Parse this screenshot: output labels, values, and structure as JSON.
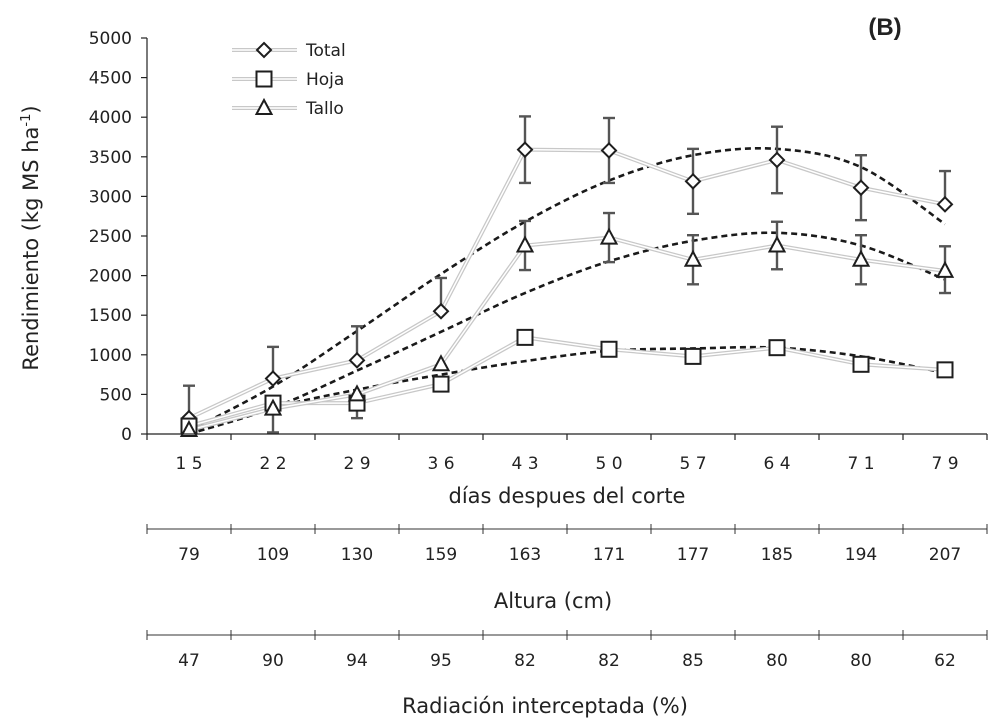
{
  "chart_data": {
    "type": "line",
    "panel_label": "(B)",
    "ylabel": "Rendimiento (kg MS ha",
    "ylabel_sup": "-1",
    "ylabel_close": ")",
    "xlabel": "días despues del corte",
    "ylim": [
      0,
      5000
    ],
    "yticks": [
      0,
      500,
      1000,
      1500,
      2000,
      2500,
      3000,
      3500,
      4000,
      4500,
      5000
    ],
    "categories": [
      "1 5",
      "2 2",
      "2 9",
      "3 6",
      "4 3",
      "5 0",
      "5 7",
      "6 4",
      "7 1",
      "7 9"
    ],
    "x": [
      15,
      22,
      29,
      36,
      43,
      50,
      57,
      64,
      71,
      79
    ],
    "series": [
      {
        "name": "Total",
        "marker": "diamond",
        "values": [
          200,
          700,
          930,
          1550,
          3590,
          3580,
          3190,
          3460,
          3110,
          2900
        ],
        "err_plus": [
          410,
          400,
          430,
          420,
          420,
          410,
          410,
          420,
          410,
          420
        ],
        "err_minus": [
          0,
          0,
          0,
          0,
          420,
          410,
          410,
          420,
          410,
          0
        ],
        "trend": [
          40,
          600,
          1300,
          2020,
          2680,
          3200,
          3520,
          3600,
          3370,
          2650
        ]
      },
      {
        "name": "Hoja",
        "marker": "square",
        "values": [
          100,
          390,
          390,
          630,
          1220,
          1070,
          980,
          1090,
          880,
          810
        ],
        "err_plus": [
          0,
          0,
          0,
          0,
          0,
          0,
          0,
          0,
          0,
          0
        ],
        "err_minus": [
          0,
          0,
          0,
          0,
          0,
          0,
          0,
          0,
          0,
          0
        ],
        "trend": [
          0,
          330,
          560,
          750,
          920,
          1050,
          1080,
          1090,
          980,
          770
        ]
      },
      {
        "name": "Tallo",
        "marker": "triangle",
        "values": [
          50,
          320,
          500,
          880,
          2380,
          2480,
          2200,
          2380,
          2200,
          2060
        ],
        "err_plus": [
          0,
          0,
          0,
          0,
          310,
          310,
          310,
          300,
          310,
          310
        ],
        "err_minus": [
          0,
          300,
          300,
          0,
          310,
          310,
          310,
          300,
          310,
          280
        ],
        "trend": [
          0,
          330,
          800,
          1290,
          1780,
          2180,
          2440,
          2540,
          2380,
          1950
        ]
      }
    ],
    "secondary_axes": [
      {
        "label": "Altura (cm)",
        "values": [
          "79",
          "109",
          "130",
          "159",
          "163",
          "171",
          "177",
          "185",
          "194",
          "207"
        ]
      },
      {
        "label": "Radiación interceptada (%)",
        "values": [
          "47",
          "90",
          "94",
          "95",
          "82",
          "82",
          "85",
          "80",
          "80",
          "62"
        ]
      }
    ],
    "legend": "top-left",
    "grid": false
  }
}
